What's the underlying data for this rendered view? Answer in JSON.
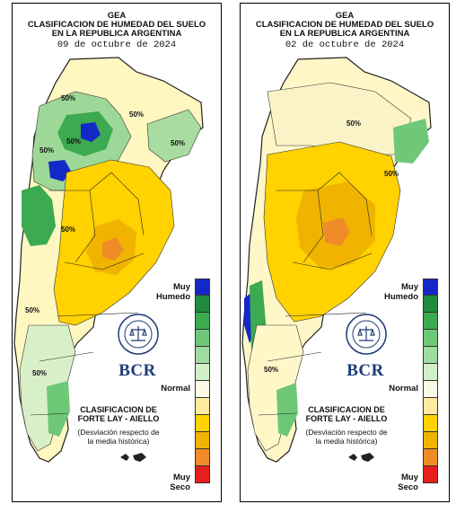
{
  "panels": [
    {
      "id": "left",
      "org": "GEA",
      "title_line1": "CLASIFICACION DE HUMEDAD DEL SUELO",
      "title_line2": "EN LA REPUBLICA ARGENTINA",
      "date": "09 de octubre de 2024",
      "contour_labels": [
        "50%",
        "50%",
        "50%",
        "50%",
        "50%",
        "50%",
        "50%",
        "50%"
      ]
    },
    {
      "id": "right",
      "org": "GEA",
      "title_line1": "CLASIFICACION DE HUMEDAD DEL SUELO",
      "title_line2": "EN LA REPUBLICA ARGENTINA",
      "date": "02 de octubre de 2024",
      "contour_labels": [
        "50%",
        "50%",
        "50%"
      ]
    }
  ],
  "legend": {
    "top_label": "Muy\nHumedo",
    "middle_label": "Normal",
    "bottom_label": "Muy\nSeco",
    "colors": [
      "#1428c8",
      "#1e8c3c",
      "#3caa50",
      "#6ec878",
      "#a0dca0",
      "#d2f0c8",
      "#fafae6",
      "#ffeba0",
      "#ffd200",
      "#f0b400",
      "#f08c28",
      "#e61e1e"
    ]
  },
  "brand": {
    "name": "BCR",
    "classification_line1": "CLASIFICACION DE",
    "classification_line2": "FORTE LAY - AIELLO",
    "deviation_line1": "(Desviación respecto de",
    "deviation_line2": "la media histórica)"
  }
}
